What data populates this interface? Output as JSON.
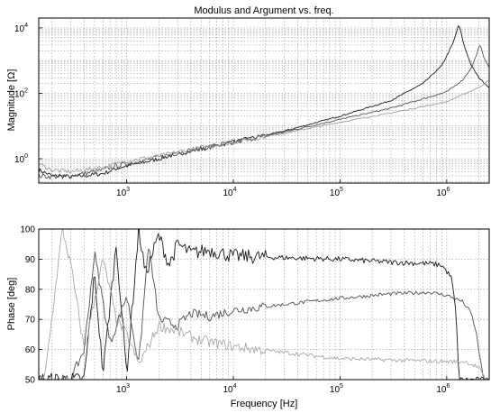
{
  "chart_data": [
    {
      "type": "line",
      "title": "Modulus and Argument vs. freq.",
      "xlabel": "",
      "ylabel": "Magnitude [Ω]",
      "xscale": "log",
      "yscale": "log",
      "xlim": [
        150,
        2500000
      ],
      "ylim": [
        0.18,
        20000
      ],
      "grid": true,
      "x_ticks": [
        {
          "value": 1000,
          "base": "10",
          "exp": "3"
        },
        {
          "value": 10000,
          "base": "10",
          "exp": "4"
        },
        {
          "value": 100000,
          "base": "10",
          "exp": "5"
        },
        {
          "value": 1000000,
          "base": "10",
          "exp": "6"
        }
      ],
      "y_ticks": [
        {
          "value": 1,
          "base": "10",
          "exp": "0"
        },
        {
          "value": 100,
          "base": "10",
          "exp": "2"
        },
        {
          "value": 10000,
          "base": "10",
          "exp": "4"
        }
      ],
      "series": [
        {
          "color": "#1a1a1a",
          "noise": 0.06,
          "points": [
            [
              150,
              0.45
            ],
            [
              200,
              0.3
            ],
            [
              300,
              0.28
            ],
            [
              400,
              0.3
            ],
            [
              600,
              0.35
            ],
            [
              800,
              0.5
            ],
            [
              1000,
              0.6
            ],
            [
              1500,
              0.8
            ],
            [
              2000,
              1.0
            ],
            [
              3000,
              1.4
            ],
            [
              5000,
              2.0
            ],
            [
              10000,
              3.2
            ],
            [
              30000,
              7
            ],
            [
              100000,
              20
            ],
            [
              300000,
              60
            ],
            [
              600000,
              200
            ],
            [
              900000,
              700
            ],
            [
              1150000,
              3500
            ],
            [
              1300000,
              13000
            ],
            [
              1450000,
              3000
            ],
            [
              1700000,
              700
            ],
            [
              2000000,
              300
            ],
            [
              2500000,
              150
            ]
          ]
        },
        {
          "color": "#555555",
          "noise": 0.07,
          "points": [
            [
              150,
              0.3
            ],
            [
              200,
              0.28
            ],
            [
              300,
              0.3
            ],
            [
              400,
              0.35
            ],
            [
              600,
              0.45
            ],
            [
              800,
              0.6
            ],
            [
              1000,
              0.7
            ],
            [
              1500,
              0.9
            ],
            [
              2000,
              1.1
            ],
            [
              3000,
              1.5
            ],
            [
              5000,
              2.1
            ],
            [
              10000,
              3.2
            ],
            [
              30000,
              6.5
            ],
            [
              100000,
              16
            ],
            [
              300000,
              35
            ],
            [
              1000000,
              110
            ],
            [
              1400000,
              250
            ],
            [
              1700000,
              600
            ],
            [
              1900000,
              1500
            ],
            [
              2050000,
              3200
            ],
            [
              2200000,
              1400
            ],
            [
              2500000,
              600
            ]
          ]
        },
        {
          "color": "#a0a0a0",
          "noise": 0.06,
          "points": [
            [
              150,
              0.7
            ],
            [
              200,
              0.45
            ],
            [
              300,
              0.4
            ],
            [
              400,
              0.45
            ],
            [
              600,
              0.55
            ],
            [
              800,
              0.7
            ],
            [
              1000,
              0.85
            ],
            [
              1500,
              1.05
            ],
            [
              2000,
              1.2
            ],
            [
              3000,
              1.6
            ],
            [
              5000,
              2.2
            ],
            [
              10000,
              3.2
            ],
            [
              30000,
              6
            ],
            [
              100000,
              13
            ],
            [
              300000,
              25
            ],
            [
              1000000,
              55
            ],
            [
              2000000,
              150
            ],
            [
              2500000,
              250
            ]
          ]
        }
      ]
    },
    {
      "type": "line",
      "title": "",
      "xlabel": "Frequency [Hz]",
      "ylabel": "Phase [deg]",
      "xscale": "log",
      "xlim": [
        150,
        2500000
      ],
      "ylim": [
        50,
        100
      ],
      "grid": true,
      "x_ticks": [
        {
          "value": 1000,
          "base": "10",
          "exp": "3"
        },
        {
          "value": 10000,
          "base": "10",
          "exp": "4"
        },
        {
          "value": 100000,
          "base": "10",
          "exp": "5"
        },
        {
          "value": 1000000,
          "base": "10",
          "exp": "6"
        }
      ],
      "y_ticks": [
        {
          "value": 50,
          "label": "50"
        },
        {
          "value": 60,
          "label": "60"
        },
        {
          "value": 70,
          "label": "70"
        },
        {
          "value": 80,
          "label": "80"
        },
        {
          "value": 90,
          "label": "90"
        },
        {
          "value": 100,
          "label": "100"
        }
      ],
      "series": [
        {
          "color": "#1a1a1a",
          "noise": 1.2,
          "points": [
            [
              400,
              50
            ],
            [
              500,
              85
            ],
            [
              600,
              52
            ],
            [
              800,
              95
            ],
            [
              1000,
              52
            ],
            [
              1300,
              100
            ],
            [
              1500,
              85
            ],
            [
              2000,
              98
            ],
            [
              2500,
              88
            ],
            [
              3000,
              95
            ],
            [
              4000,
              92
            ],
            [
              6000,
              93
            ],
            [
              10000,
              91
            ],
            [
              30000,
              90.5
            ],
            [
              100000,
              90
            ],
            [
              300000,
              89
            ],
            [
              700000,
              88.5
            ],
            [
              900000,
              88
            ],
            [
              1100000,
              84
            ],
            [
              1200000,
              75
            ],
            [
              1270000,
              60
            ],
            [
              1300000,
              50
            ]
          ]
        },
        {
          "color": "#505050",
          "noise": 0.8,
          "points": [
            [
              300,
              50
            ],
            [
              400,
              60
            ],
            [
              500,
              92
            ],
            [
              700,
              62
            ],
            [
              1000,
              78
            ],
            [
              1300,
              55
            ],
            [
              1600,
              95
            ],
            [
              2000,
              70
            ],
            [
              3000,
              68
            ],
            [
              4000,
              72
            ],
            [
              6000,
              71
            ],
            [
              10000,
              73
            ],
            [
              30000,
              75
            ],
            [
              100000,
              77
            ],
            [
              300000,
              78.5
            ],
            [
              700000,
              79
            ],
            [
              1000000,
              78
            ],
            [
              1400000,
              76
            ],
            [
              1700000,
              72
            ],
            [
              1900000,
              65
            ],
            [
              2100000,
              55
            ],
            [
              2200000,
              50
            ]
          ]
        },
        {
          "color": "#a8a8a8",
          "noise": 0.9,
          "points": [
            [
              170,
              50
            ],
            [
              250,
              100
            ],
            [
              300,
              88
            ],
            [
              400,
              60
            ],
            [
              600,
              90
            ],
            [
              800,
              70
            ],
            [
              1000,
              65
            ],
            [
              1300,
              55
            ],
            [
              2000,
              68
            ],
            [
              3000,
              66
            ],
            [
              5000,
              63
            ],
            [
              10000,
              61
            ],
            [
              30000,
              59
            ],
            [
              100000,
              57
            ],
            [
              300000,
              56.5
            ],
            [
              1000000,
              56
            ],
            [
              1500000,
              56
            ],
            [
              2000000,
              54
            ],
            [
              2300000,
              50
            ]
          ]
        }
      ]
    }
  ]
}
